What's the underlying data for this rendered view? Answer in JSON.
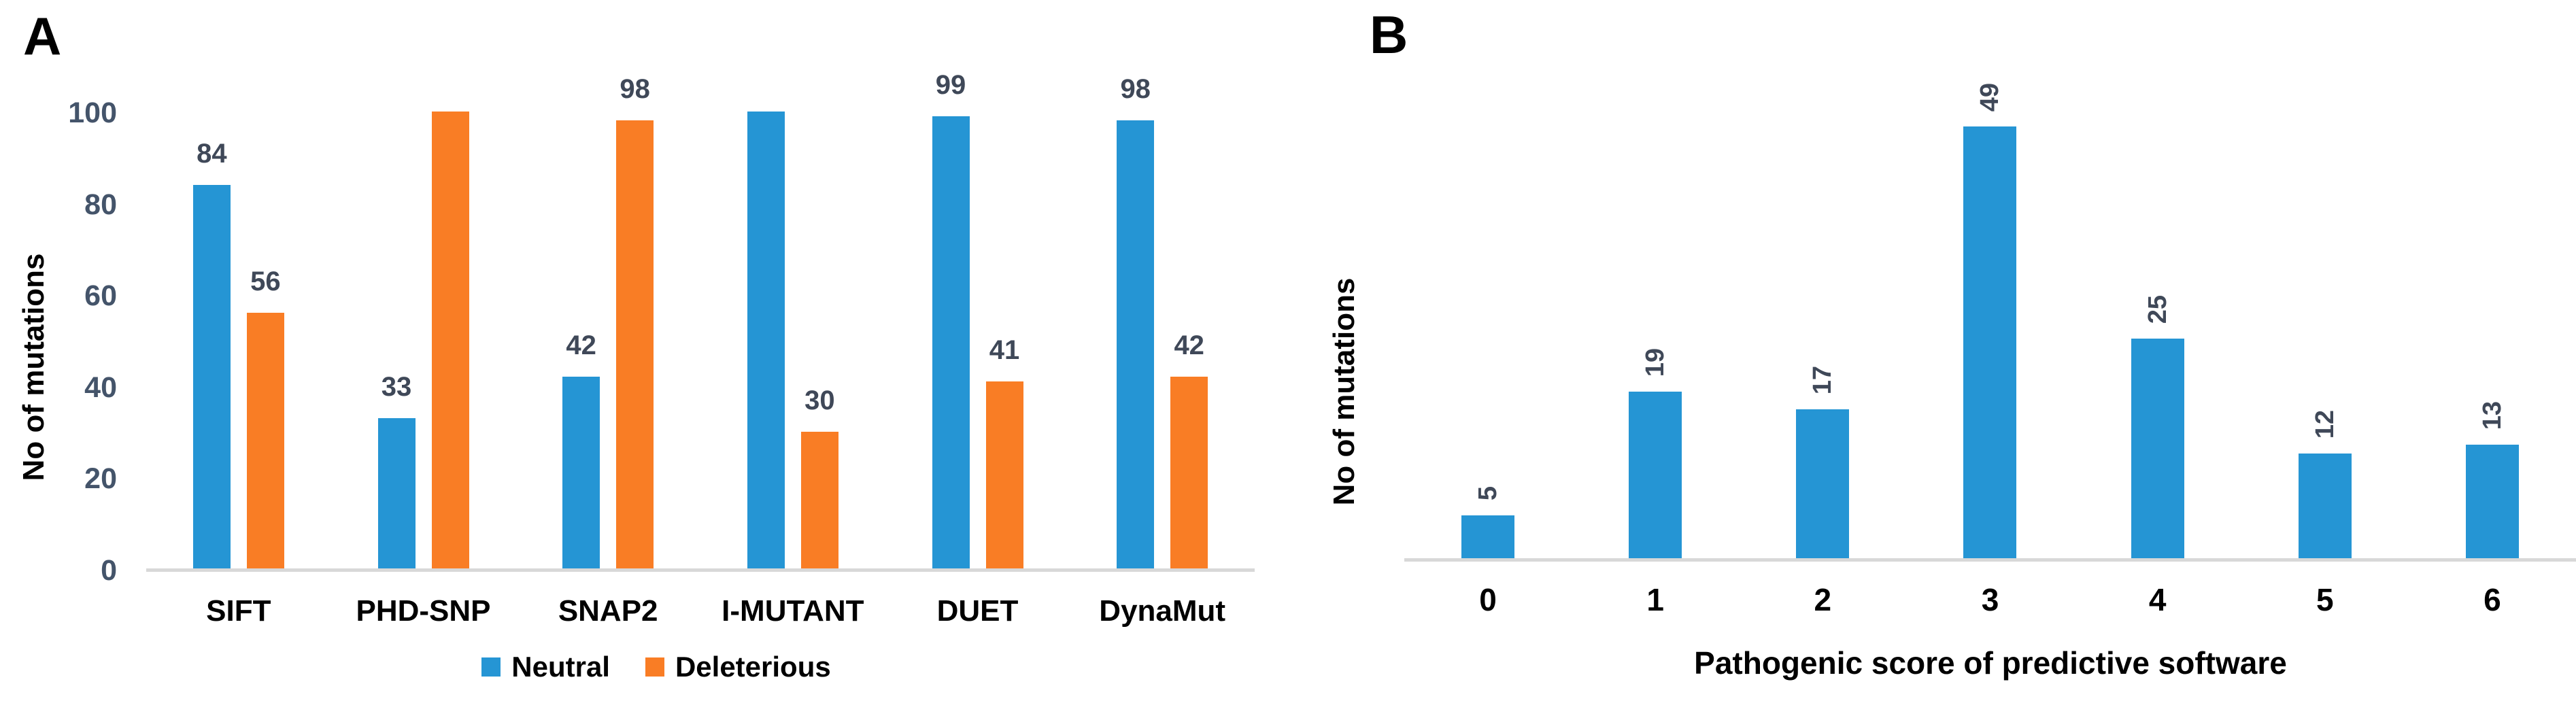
{
  "figure": {
    "background": "#ffffff",
    "axis_line_color": "#d8d8d8",
    "value_label_color": "#3f4858",
    "tick_label_color": "#44546a"
  },
  "panel_a": {
    "tag": "A",
    "legend": [
      {
        "label": "Neutral",
        "color": "#2595d4"
      },
      {
        "label": "Deleterious",
        "color": "#f97d25"
      }
    ]
  },
  "panel_b": {
    "tag": "B"
  },
  "chart_data": [
    {
      "type": "bar",
      "panel": "A",
      "title": "",
      "xlabel": "",
      "ylabel": "No of mutations",
      "categories": [
        "SIFT",
        "PHD-SNP",
        "SNAP2",
        "I-MUTANT",
        "DUET",
        "DynaMut"
      ],
      "series": [
        {
          "name": "Neutral",
          "color": "#2595d4",
          "values": [
            84,
            33,
            42,
            100,
            99,
            98
          ],
          "data_labels": [
            "84",
            "33",
            "42",
            "",
            "99",
            "98"
          ]
        },
        {
          "name": "Deleterious",
          "color": "#f97d25",
          "values": [
            56,
            100,
            98,
            30,
            41,
            42
          ],
          "data_labels": [
            "56",
            "",
            "98",
            "30",
            "41",
            "42"
          ]
        }
      ],
      "yticks": [
        0,
        20,
        40,
        60,
        80,
        100
      ],
      "ylim": [
        0,
        100
      ],
      "grid": false,
      "legend_position": "bottom"
    },
    {
      "type": "bar",
      "panel": "B",
      "title": "",
      "xlabel": "Pathogenic score of predictive software",
      "ylabel": "No of mutations",
      "categories": [
        "0",
        "1",
        "2",
        "3",
        "4",
        "5",
        "6"
      ],
      "series": [
        {
          "name": "No of mutations",
          "color": "#2595d4",
          "values": [
            5,
            19,
            17,
            49,
            25,
            12,
            13
          ],
          "data_labels": [
            "5",
            "19",
            "17",
            "49",
            "25",
            "12",
            "13"
          ]
        }
      ],
      "yticks": [],
      "ylim": [
        0,
        50
      ],
      "grid": false,
      "data_label_rotation": -90,
      "legend_position": "none"
    }
  ]
}
